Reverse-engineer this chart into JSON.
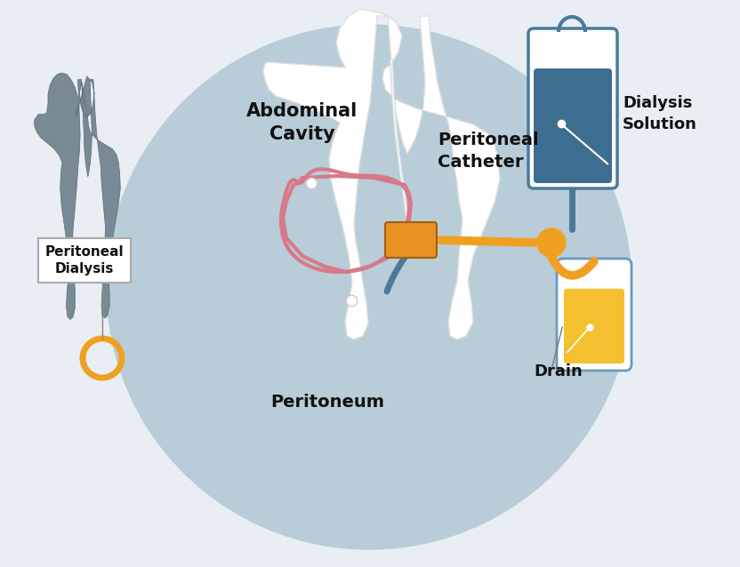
{
  "bg_color": "#e8eef3",
  "circle_color": "#b8cdd8",
  "body_color": "#ffffff",
  "small_body_color": "#7a8a95",
  "iv_bag_border": "#4a7a9b",
  "iv_bag_fill": "#3d6e8f",
  "drain_border": "#6a9abf",
  "drain_liquid": "#f5c030",
  "orange_color": "#f0a020",
  "pink_color": "#d87888",
  "blue_tube": "#4a7a9b",
  "connector_color": "#e89020",
  "text_color": "#111111",
  "label_abdominal": "Abdominal\nCavity",
  "label_catheter": "Peritoneal\nCatheter",
  "label_peritoneum": "Peritoneum",
  "label_dialysis": "Dialysis\nSolution",
  "label_drain": "Drain",
  "label_pd": "Peritoneal\nDialysis",
  "font_size": 13,
  "font_size_sm": 11
}
